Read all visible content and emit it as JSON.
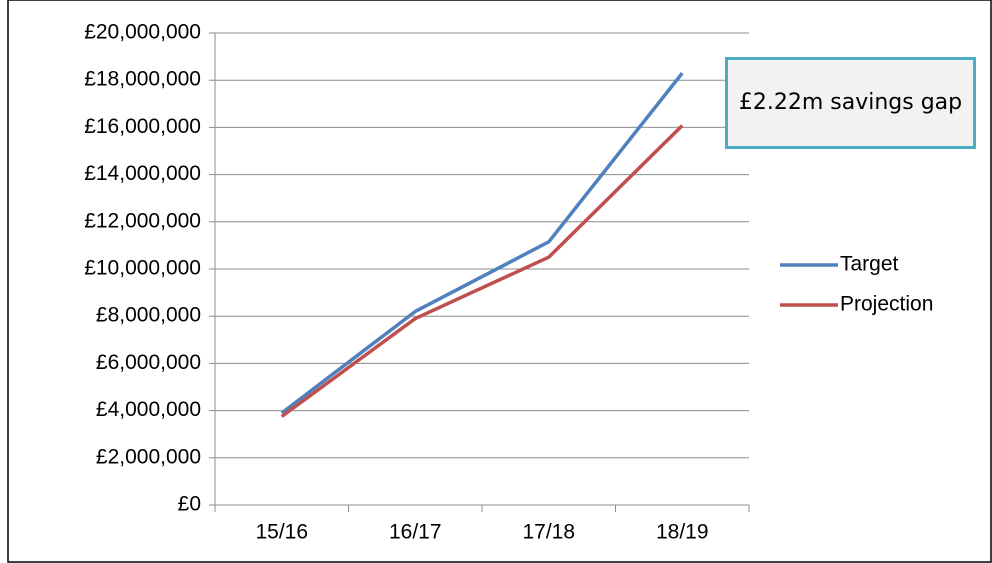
{
  "chart_data": {
    "type": "line",
    "categories": [
      "15/16",
      "16/17",
      "17/18",
      "18/19"
    ],
    "series": [
      {
        "name": "Target",
        "color": "#4f81bd",
        "values": [
          3900000,
          8200000,
          11150000,
          18300000
        ]
      },
      {
        "name": "Projection",
        "color": "#c0504d",
        "values": [
          3750000,
          7900000,
          10500000,
          16080000
        ]
      }
    ],
    "ylim": [
      0,
      20000000
    ],
    "yticks": [
      {
        "value": 0,
        "label": "£0"
      },
      {
        "value": 2000000,
        "label": "£2,000,000"
      },
      {
        "value": 4000000,
        "label": "£4,000,000"
      },
      {
        "value": 6000000,
        "label": "£6,000,000"
      },
      {
        "value": 8000000,
        "label": "£8,000,000"
      },
      {
        "value": 10000000,
        "label": "£10,000,000"
      },
      {
        "value": 12000000,
        "label": "£12,000,000"
      },
      {
        "value": 14000000,
        "label": "£14,000,000"
      },
      {
        "value": 16000000,
        "label": "£16,000,000"
      },
      {
        "value": 18000000,
        "label": "£18,000,000"
      },
      {
        "value": 20000000,
        "label": "£20,000,000"
      }
    ],
    "grid": true,
    "legend": "right",
    "annotation": "£2.22m savings gap"
  }
}
